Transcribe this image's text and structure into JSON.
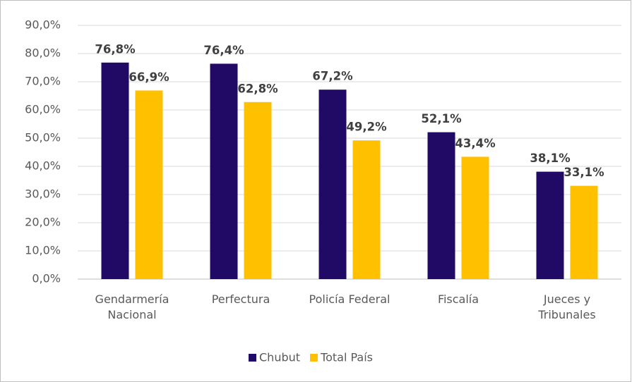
{
  "chart_data": {
    "type": "bar",
    "categories": [
      "Gendarmería Nacional",
      "Perfectura",
      "Policía Federal",
      "Fiscalía",
      "Jueces y Tribunales"
    ],
    "series": [
      {
        "name": "Chubut",
        "color": "#210a66",
        "values": [
          76.8,
          76.4,
          67.2,
          52.1,
          38.1
        ],
        "value_labels": [
          "76,8%",
          "76,4%",
          "67,2%",
          "52,1%",
          "38,1%"
        ]
      },
      {
        "name": "Total País",
        "color": "#ffc000",
        "values": [
          66.9,
          62.8,
          49.2,
          43.4,
          33.1
        ],
        "value_labels": [
          "66,9%",
          "62,8%",
          "49,2%",
          "43,4%",
          "33,1%"
        ]
      }
    ],
    "ylim": [
      0,
      90
    ],
    "yticks": [
      {
        "value": 0,
        "label": "0,0%"
      },
      {
        "value": 10,
        "label": "10,0%"
      },
      {
        "value": 20,
        "label": "20,0%"
      },
      {
        "value": 30,
        "label": "30,0%"
      },
      {
        "value": 40,
        "label": "40,0%"
      },
      {
        "value": 50,
        "label": "50,0%"
      },
      {
        "value": 60,
        "label": "60,0%"
      },
      {
        "value": 70,
        "label": "70,0%"
      },
      {
        "value": 80,
        "label": "80,0%"
      },
      {
        "value": 90,
        "label": "90,0%"
      }
    ],
    "grid": true,
    "legend": "bottom"
  }
}
